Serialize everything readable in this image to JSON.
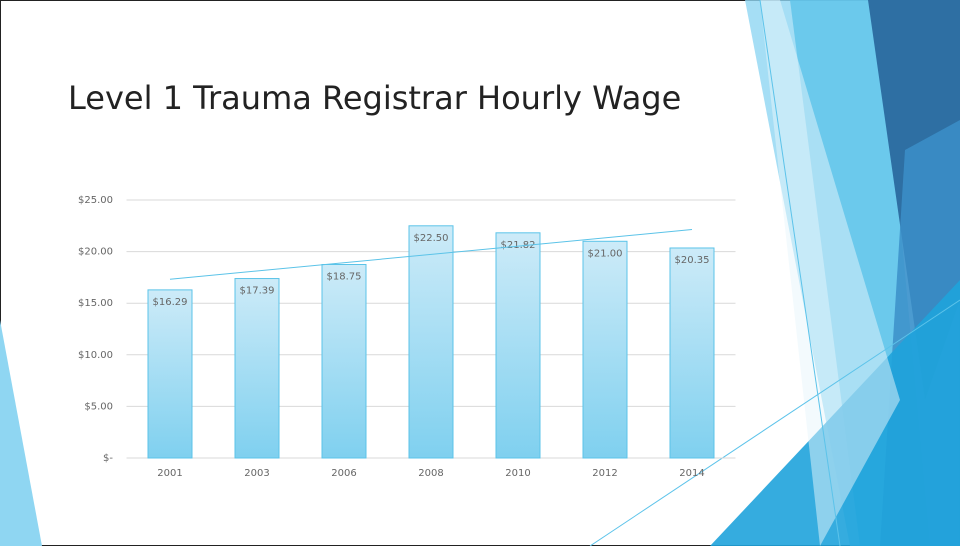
{
  "chart_data": {
    "type": "bar",
    "title": "Level 1 Trauma Registrar Hourly Wage",
    "categories": [
      "2001",
      "2003",
      "2006",
      "2008",
      "2010",
      "2012",
      "2014"
    ],
    "values": [
      16.29,
      17.39,
      18.75,
      22.5,
      21.82,
      21.0,
      20.35
    ],
    "value_labels": [
      "$16.29",
      "$17.39",
      "$18.75",
      "$22.50",
      "$21.82",
      "$21.00",
      "$20.35"
    ],
    "color": "#7fd0ef",
    "ylim": [
      0,
      25
    ],
    "yticks": [
      {
        "value": 0,
        "label": "$-"
      },
      {
        "value": 5,
        "label": "$5.00"
      },
      {
        "value": 10,
        "label": "$10.00"
      },
      {
        "value": 15,
        "label": "$15.00"
      },
      {
        "value": 20,
        "label": "$20.00"
      },
      {
        "value": 25,
        "label": "$25.00"
      }
    ],
    "grid": true,
    "trendline": "linear"
  }
}
